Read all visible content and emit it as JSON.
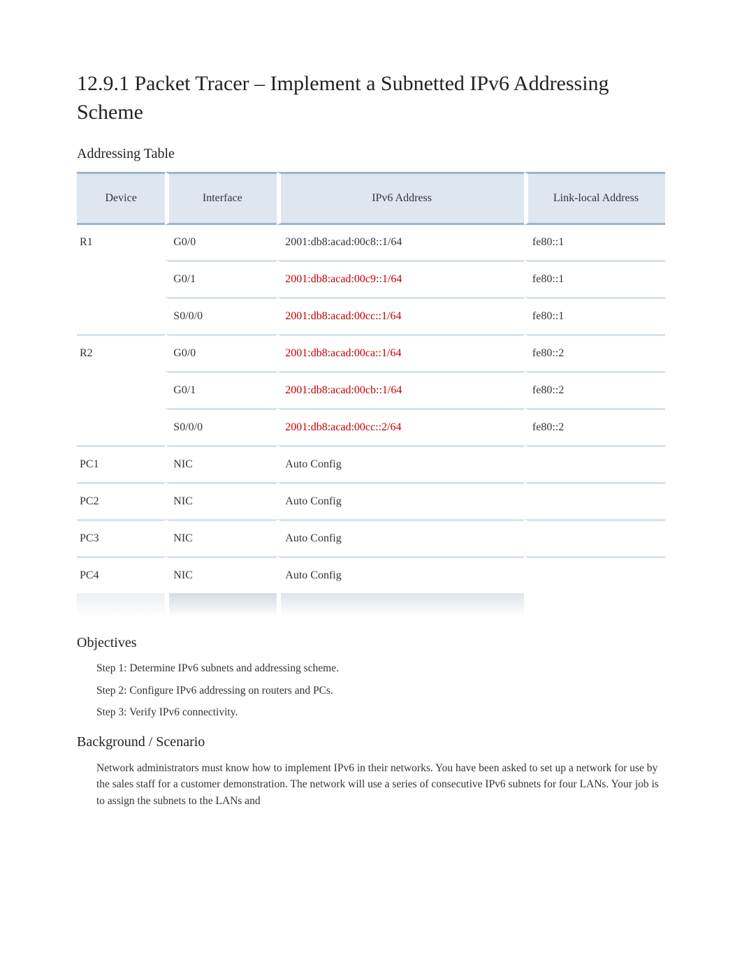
{
  "title": "12.9.1 Packet Tracer – Implement a Subnetted IPv6 Addressing Scheme",
  "addressing_table": {
    "heading": "Addressing Table",
    "columns": {
      "device": "Device",
      "interface": "Interface",
      "ipv6": "IPv6 Address",
      "linklocal": "Link-local Address"
    },
    "rows": [
      {
        "device": "R1",
        "interface": "G0/0",
        "ipv6": "2001:db8:acad:00c8::1/64",
        "ipv6_red": false,
        "linklocal": "fe80::1",
        "group_start": true
      },
      {
        "device": "",
        "interface": "G0/1",
        "ipv6": "2001:db8:acad:00c9::1/64",
        "ipv6_red": true,
        "linklocal": "fe80::1",
        "group_start": false
      },
      {
        "device": "",
        "interface": "S0/0/0",
        "ipv6": "2001:db8:acad:00cc::1/64",
        "ipv6_red": true,
        "linklocal": "fe80::1",
        "group_start": false
      },
      {
        "device": "R2",
        "interface": "G0/0",
        "ipv6": "2001:db8:acad:00ca::1/64",
        "ipv6_red": true,
        "linklocal": "fe80::2",
        "group_start": true
      },
      {
        "device": "",
        "interface": "G0/1",
        "ipv6": "2001:db8:acad:00cb::1/64",
        "ipv6_red": true,
        "linklocal": "fe80::2",
        "group_start": false
      },
      {
        "device": "",
        "interface": "S0/0/0",
        "ipv6": "2001:db8:acad:00cc::2/64",
        "ipv6_red": true,
        "linklocal": "fe80::2",
        "group_start": false
      },
      {
        "device": "PC1",
        "interface": "NIC",
        "ipv6": "Auto Config",
        "ipv6_red": false,
        "linklocal": "",
        "group_start": true
      },
      {
        "device": "PC2",
        "interface": "NIC",
        "ipv6": "Auto Config",
        "ipv6_red": false,
        "linklocal": "",
        "group_start": true
      },
      {
        "device": "PC3",
        "interface": "NIC",
        "ipv6": "Auto Config",
        "ipv6_red": false,
        "linklocal": "",
        "group_start": true
      },
      {
        "device": "PC4",
        "interface": "NIC",
        "ipv6": "Auto Config",
        "ipv6_red": false,
        "linklocal": "",
        "group_start": true
      }
    ]
  },
  "objectives": {
    "heading": "Objectives",
    "steps": [
      "Step 1:   Determine IPv6 subnets and addressing scheme.",
      "Step 2: Configure IPv6 addressing on routers and PCs.",
      "Step 3: Verify IPv6 connectivity."
    ]
  },
  "background": {
    "heading": "Background / Scenario",
    "text": "Network administrators must know how to implement IPv6 in their networks. You have been asked to set up a network for use by the sales staff for a customer demonstration. The network will use a series of consecutive IPv6 subnets for four LANs. Your job is to assign the subnets to the LANs and"
  },
  "colors": {
    "header_bg": "#dee7ef",
    "header_border": "#9db4ca",
    "row_border": "#d9e3ec",
    "red_text": "#c00000",
    "body_text": "#333333",
    "background": "#ffffff"
  },
  "typography": {
    "title_fontsize": 30,
    "h2_fontsize": 20,
    "cell_fontsize": 16,
    "body_fontsize": 15.5,
    "font_family": "Georgia, Times New Roman, serif"
  }
}
